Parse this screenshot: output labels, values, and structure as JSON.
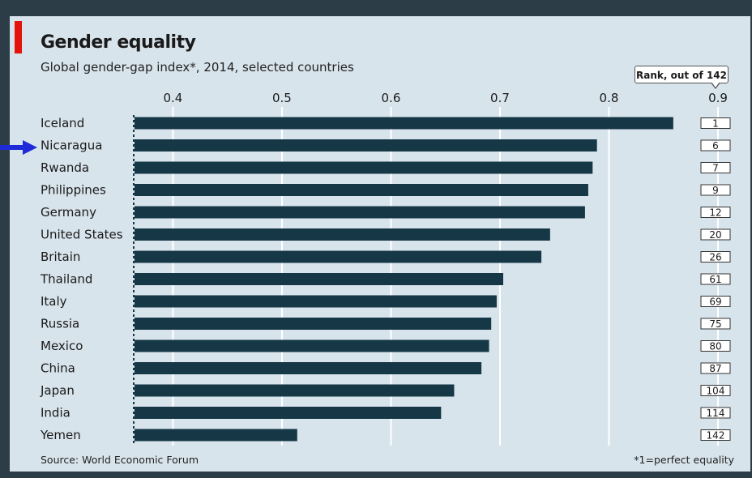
{
  "header": {
    "title": "Gender equality",
    "subtitle": "Global gender-gap index*, 2014, selected countries"
  },
  "rank_callout": "Rank, out of 142",
  "footer": {
    "source": "Source: World Economic Forum",
    "footnote": "*1=perfect equality"
  },
  "colors": {
    "background": "#2c3d48",
    "panel": "#d8e4ec",
    "bar": "#163746",
    "accent": "#e3120b",
    "pointer_arrow": "#1f2bd8"
  },
  "annotation": {
    "pointer_arrow_target": "Nicaragua"
  },
  "chart_data": {
    "type": "bar",
    "orientation": "horizontal",
    "title": "Gender equality",
    "subtitle": "Global gender-gap index*, 2014, selected countries",
    "categories": [
      "Iceland",
      "Nicaragua",
      "Rwanda",
      "Philippines",
      "Germany",
      "United States",
      "Britain",
      "Thailand",
      "Italy",
      "Russia",
      "Mexico",
      "China",
      "Japan",
      "India",
      "Yemen"
    ],
    "values": [
      0.859,
      0.789,
      0.785,
      0.781,
      0.778,
      0.746,
      0.738,
      0.703,
      0.697,
      0.692,
      0.69,
      0.683,
      0.658,
      0.646,
      0.514
    ],
    "ranks": [
      "1",
      "6",
      "7",
      "9",
      "12",
      "20",
      "26",
      "61",
      "69",
      "75",
      "80",
      "87",
      "104",
      "114",
      "142"
    ],
    "xlim": [
      0.364,
      0.9
    ],
    "xticks": [
      0.4,
      0.5,
      0.6,
      0.7,
      0.8,
      0.9
    ],
    "xtick_labels": [
      "0.4",
      "0.5",
      "0.6",
      "0.7",
      "0.8",
      "0.9"
    ],
    "xlabel": "",
    "ylabel": "",
    "grid": true,
    "axis_position": "top"
  }
}
